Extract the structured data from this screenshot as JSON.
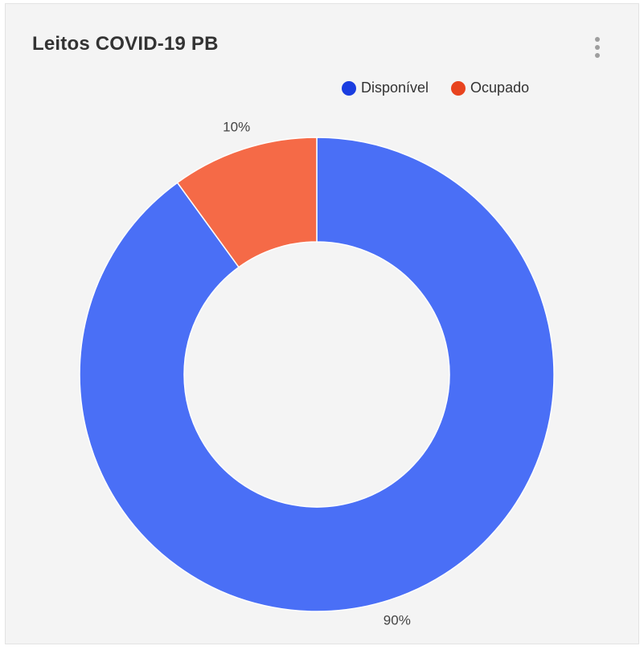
{
  "card": {
    "title": "Leitos COVID-19 PB",
    "menu_icon": "more-vertical-icon"
  },
  "legend": [
    {
      "label": "Disponível",
      "color": "#1a3de0"
    },
    {
      "label": "Ocupado",
      "color": "#e8431e"
    }
  ],
  "chart_data": {
    "type": "pie",
    "title": "Leitos COVID-19 PB",
    "donut": true,
    "legend_position": "top-right",
    "slices": [
      {
        "label": "Disponível",
        "value": 90,
        "display": "90%",
        "color": "#4a6ff6"
      },
      {
        "label": "Ocupado",
        "value": 10,
        "display": "10%",
        "color": "#f56a47"
      }
    ]
  }
}
